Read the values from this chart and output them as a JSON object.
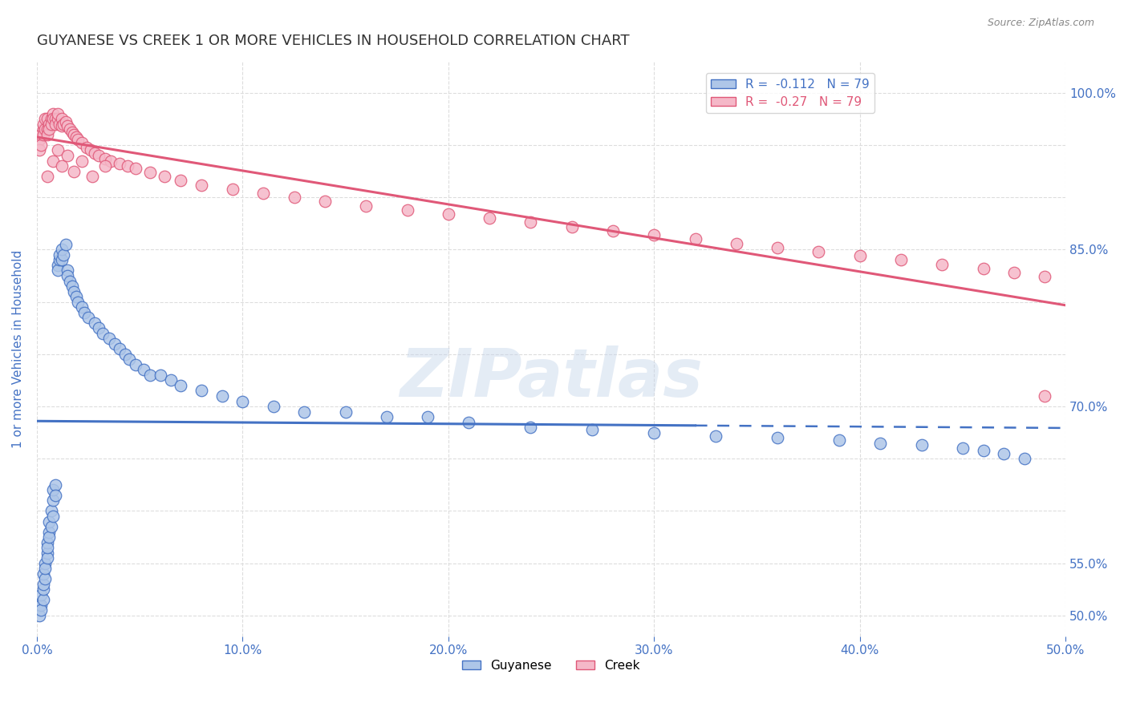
{
  "title": "GUYANESE VS CREEK 1 OR MORE VEHICLES IN HOUSEHOLD CORRELATION CHART",
  "source": "Source: ZipAtlas.com",
  "ylabel": "1 or more Vehicles in Household",
  "xlim": [
    0.0,
    0.5
  ],
  "ylim": [
    0.48,
    1.03
  ],
  "R_guyanese": -0.112,
  "N_guyanese": 79,
  "R_creek": -0.27,
  "N_creek": 79,
  "guyanese_color": "#aec6e8",
  "creek_color": "#f5b8c8",
  "guyanese_line_color": "#4472c4",
  "creek_line_color": "#e05878",
  "watermark": "ZIPatlas",
  "guyanese_x": [
    0.001,
    0.001,
    0.002,
    0.002,
    0.002,
    0.003,
    0.003,
    0.003,
    0.003,
    0.004,
    0.004,
    0.004,
    0.005,
    0.005,
    0.005,
    0.005,
    0.006,
    0.006,
    0.006,
    0.007,
    0.007,
    0.008,
    0.008,
    0.008,
    0.009,
    0.009,
    0.01,
    0.01,
    0.011,
    0.011,
    0.012,
    0.012,
    0.013,
    0.014,
    0.015,
    0.015,
    0.016,
    0.017,
    0.018,
    0.019,
    0.02,
    0.022,
    0.023,
    0.025,
    0.028,
    0.03,
    0.032,
    0.035,
    0.038,
    0.04,
    0.043,
    0.045,
    0.048,
    0.052,
    0.055,
    0.06,
    0.065,
    0.07,
    0.08,
    0.09,
    0.1,
    0.115,
    0.13,
    0.15,
    0.17,
    0.19,
    0.21,
    0.24,
    0.27,
    0.3,
    0.33,
    0.36,
    0.39,
    0.41,
    0.43,
    0.45,
    0.46,
    0.47,
    0.48
  ],
  "guyanese_y": [
    0.51,
    0.5,
    0.51,
    0.505,
    0.52,
    0.515,
    0.525,
    0.53,
    0.54,
    0.535,
    0.55,
    0.545,
    0.56,
    0.555,
    0.57,
    0.565,
    0.58,
    0.575,
    0.59,
    0.585,
    0.6,
    0.61,
    0.595,
    0.62,
    0.625,
    0.615,
    0.835,
    0.83,
    0.84,
    0.845,
    0.84,
    0.85,
    0.845,
    0.855,
    0.83,
    0.825,
    0.82,
    0.815,
    0.81,
    0.805,
    0.8,
    0.795,
    0.79,
    0.785,
    0.78,
    0.775,
    0.77,
    0.765,
    0.76,
    0.755,
    0.75,
    0.745,
    0.74,
    0.735,
    0.73,
    0.73,
    0.725,
    0.72,
    0.715,
    0.71,
    0.705,
    0.7,
    0.695,
    0.695,
    0.69,
    0.69,
    0.685,
    0.68,
    0.678,
    0.675,
    0.672,
    0.67,
    0.668,
    0.665,
    0.663,
    0.66,
    0.658,
    0.655,
    0.65
  ],
  "creek_x": [
    0.001,
    0.001,
    0.002,
    0.002,
    0.003,
    0.003,
    0.003,
    0.004,
    0.004,
    0.005,
    0.005,
    0.005,
    0.006,
    0.006,
    0.007,
    0.007,
    0.008,
    0.008,
    0.009,
    0.009,
    0.01,
    0.01,
    0.011,
    0.012,
    0.012,
    0.013,
    0.014,
    0.015,
    0.016,
    0.017,
    0.018,
    0.019,
    0.02,
    0.022,
    0.024,
    0.026,
    0.028,
    0.03,
    0.033,
    0.036,
    0.04,
    0.044,
    0.048,
    0.055,
    0.062,
    0.07,
    0.08,
    0.095,
    0.11,
    0.125,
    0.14,
    0.16,
    0.18,
    0.2,
    0.22,
    0.24,
    0.26,
    0.28,
    0.3,
    0.32,
    0.34,
    0.36,
    0.38,
    0.4,
    0.42,
    0.44,
    0.46,
    0.475,
    0.49,
    0.49,
    0.005,
    0.008,
    0.01,
    0.012,
    0.015,
    0.018,
    0.022,
    0.027,
    0.033
  ],
  "creek_y": [
    0.955,
    0.945,
    0.96,
    0.95,
    0.965,
    0.96,
    0.97,
    0.965,
    0.975,
    0.965,
    0.975,
    0.96,
    0.97,
    0.965,
    0.975,
    0.97,
    0.98,
    0.975,
    0.975,
    0.97,
    0.975,
    0.98,
    0.97,
    0.975,
    0.968,
    0.97,
    0.972,
    0.968,
    0.965,
    0.962,
    0.96,
    0.958,
    0.955,
    0.952,
    0.948,
    0.945,
    0.942,
    0.94,
    0.937,
    0.935,
    0.932,
    0.93,
    0.928,
    0.924,
    0.92,
    0.916,
    0.912,
    0.908,
    0.904,
    0.9,
    0.896,
    0.892,
    0.888,
    0.884,
    0.88,
    0.876,
    0.872,
    0.868,
    0.864,
    0.86,
    0.856,
    0.852,
    0.848,
    0.844,
    0.84,
    0.836,
    0.832,
    0.828,
    0.824,
    0.71,
    0.92,
    0.935,
    0.945,
    0.93,
    0.94,
    0.925,
    0.935,
    0.92,
    0.93
  ],
  "background_color": "#ffffff",
  "grid_color": "#dddddd",
  "title_color": "#333333",
  "tick_color": "#4472c4"
}
